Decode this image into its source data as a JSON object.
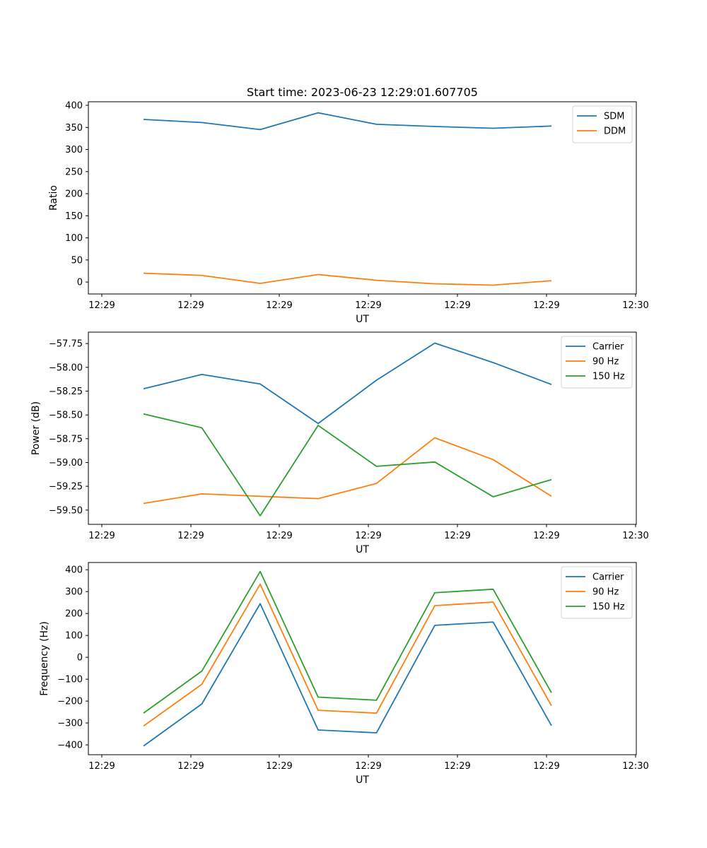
{
  "figure_title": "Start time: 2023-06-23 12:29:01.607705",
  "chart_data": [
    {
      "type": "line",
      "xlabel": "UT",
      "ylabel": "Ratio",
      "x_tick_labels": [
        "12:29",
        "12:29",
        "12:29",
        "12:29",
        "12:29",
        "12:29",
        "12:30"
      ],
      "y_ticks": [
        0,
        50,
        100,
        150,
        200,
        250,
        300,
        350,
        400
      ],
      "ylim": [
        -27,
        408
      ],
      "legend_position": "top-right",
      "series": [
        {
          "name": "SDM",
          "color": "#1f77b4",
          "values": [
            368,
            361,
            345,
            383,
            357,
            352,
            348,
            353
          ]
        },
        {
          "name": "DDM",
          "color": "#ff7f0e",
          "values": [
            20,
            15,
            -3,
            17,
            4,
            -4,
            -7,
            3
          ]
        }
      ]
    },
    {
      "type": "line",
      "xlabel": "UT",
      "ylabel": "Power (dB)",
      "x_tick_labels": [
        "12:29",
        "12:29",
        "12:29",
        "12:29",
        "12:29",
        "12:29",
        "12:30"
      ],
      "y_ticks": [
        -59.5,
        -59.25,
        -59.0,
        -58.75,
        -58.5,
        -58.25,
        -58.0,
        -57.75
      ],
      "y_tick_labels": [
        "−59.50",
        "−59.25",
        "−59.00",
        "−58.75",
        "−58.50",
        "−58.25",
        "−58.00",
        "−57.75"
      ],
      "ylim": [
        -59.65,
        -57.63
      ],
      "legend_position": "top-right",
      "series": [
        {
          "name": "Carrier",
          "color": "#1f77b4",
          "values": [
            -58.225,
            -58.075,
            -58.175,
            -58.59,
            -58.135,
            -57.745,
            -57.95,
            -58.18
          ]
        },
        {
          "name": "90 Hz",
          "color": "#ff7f0e",
          "values": [
            -59.43,
            -59.33,
            -59.355,
            -59.38,
            -59.22,
            -58.74,
            -58.97,
            -59.355
          ]
        },
        {
          "name": "150 Hz",
          "color": "#2ca02c",
          "values": [
            -58.49,
            -58.635,
            -59.56,
            -58.61,
            -59.04,
            -58.995,
            -59.36,
            -59.18
          ]
        }
      ]
    },
    {
      "type": "line",
      "xlabel": "UT",
      "ylabel": "Frequency (Hz)",
      "x_tick_labels": [
        "12:29",
        "12:29",
        "12:29",
        "12:29",
        "12:29",
        "12:29",
        "12:30"
      ],
      "y_ticks": [
        -400,
        -300,
        -200,
        -100,
        0,
        100,
        200,
        300,
        400
      ],
      "y_tick_labels": [
        "−400",
        "−300",
        "−200",
        "−100",
        "0",
        "100",
        "200",
        "300",
        "400"
      ],
      "ylim": [
        -445,
        433
      ],
      "legend_position": "top-right",
      "series": [
        {
          "name": "Carrier",
          "color": "#1f77b4",
          "values": [
            -405,
            -213,
            245,
            -332,
            -345,
            146,
            161,
            -312
          ]
        },
        {
          "name": "90 Hz",
          "color": "#ff7f0e",
          "values": [
            -314,
            -123,
            334,
            -242,
            -255,
            236,
            252,
            -221
          ]
        },
        {
          "name": "150 Hz",
          "color": "#2ca02c",
          "values": [
            -255,
            -63,
            392,
            -182,
            -196,
            295,
            311,
            -162
          ]
        }
      ]
    }
  ]
}
